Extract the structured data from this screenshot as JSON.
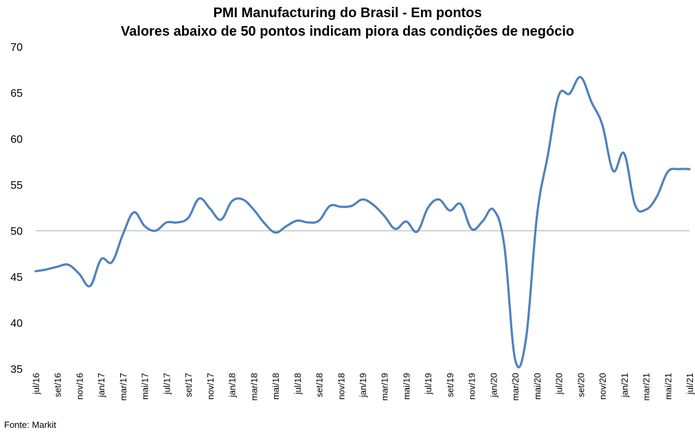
{
  "chart_data": {
    "type": "line",
    "title": "PMI Manufacturing do Brasil - Em pontos",
    "subtitle": "Valores abaixo de 50 pontos indicam piora das condições de negócio",
    "xlabel": "",
    "ylabel": "",
    "ylim": [
      35,
      70
    ],
    "yticks": [
      35,
      40,
      45,
      50,
      55,
      60,
      65,
      70
    ],
    "reference_line": 50,
    "grid": false,
    "line_color": "#4F81BD",
    "reference_color": "#A6A6A6",
    "x": [
      "jul/16",
      "ago/16",
      "set/16",
      "out/16",
      "nov/16",
      "dez/16",
      "jan/17",
      "fev/17",
      "mar/17",
      "abr/17",
      "mai/17",
      "jun/17",
      "jul/17",
      "ago/17",
      "set/17",
      "out/17",
      "nov/17",
      "dez/17",
      "jan/18",
      "fev/18",
      "mar/18",
      "abr/18",
      "mai/18",
      "jun/18",
      "jul/18",
      "ago/18",
      "set/18",
      "out/18",
      "nov/18",
      "dez/18",
      "jan/19",
      "fev/19",
      "mar/19",
      "abr/19",
      "mai/19",
      "jun/19",
      "jul/19",
      "ago/19",
      "set/19",
      "out/19",
      "nov/19",
      "dez/19",
      "jan/20",
      "fev/20",
      "mar/20",
      "abr/20",
      "mai/20",
      "jun/20",
      "jul/20",
      "ago/20",
      "set/20",
      "out/20",
      "nov/20",
      "dez/20",
      "jan/21",
      "fev/21",
      "mar/21",
      "abr/21",
      "mai/21",
      "jun/21",
      "jul/21"
    ],
    "xtick_labels": [
      "jul/16",
      "set/16",
      "nov/16",
      "jan/17",
      "mar/17",
      "mai/17",
      "jul/17",
      "set/17",
      "nov/17",
      "jan/18",
      "mar/18",
      "mai/18",
      "jul/18",
      "set/18",
      "nov/18",
      "jan/19",
      "mar/19",
      "mai/19",
      "jul/19",
      "set/19",
      "nov/19",
      "jan/20",
      "mar/20",
      "mai/20",
      "jul/20",
      "set/20",
      "nov/20",
      "jan/21",
      "mar/21",
      "mai/21",
      "jul/21"
    ],
    "series": [
      {
        "values": [
          45.6,
          45.8,
          46.1,
          46.3,
          45.3,
          44.0,
          46.9,
          46.6,
          49.6,
          52.0,
          50.5,
          50.0,
          50.9,
          50.9,
          51.4,
          53.5,
          52.4,
          51.2,
          53.2,
          53.4,
          52.3,
          50.8,
          49.8,
          50.5,
          51.1,
          50.9,
          51.1,
          52.7,
          52.6,
          52.7,
          53.4,
          52.8,
          51.6,
          50.2,
          51.0,
          49.9,
          52.5,
          53.4,
          52.2,
          52.9,
          50.2,
          51.0,
          52.3,
          48.4,
          36.0,
          38.3,
          51.6,
          58.2,
          64.7,
          64.9,
          66.7,
          64.0,
          61.5,
          56.5,
          58.4,
          52.8,
          52.3,
          53.7,
          56.4,
          56.7,
          56.7
        ]
      }
    ]
  },
  "source_text": "Fonte: Markit"
}
